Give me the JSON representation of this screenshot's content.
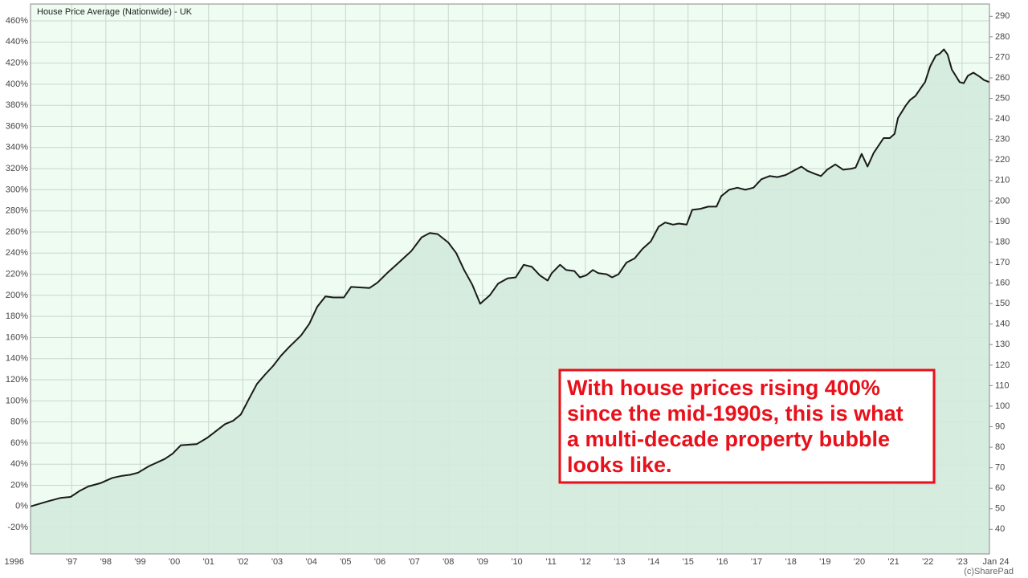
{
  "chart_data": {
    "type": "line",
    "title": "House Price Average (Nationwide) - UK",
    "credit": "(c)SharePad",
    "annotation": [
      "With house prices rising 400%",
      "since the mid-1990s, this is what",
      "a multi-decade property bubble",
      "looks like."
    ],
    "xlim": [
      1995.8,
      2023.8
    ],
    "xticks": [
      {
        "value": 1995.8,
        "label": "1996"
      },
      {
        "value": 1997,
        "label": "'97"
      },
      {
        "value": 1998,
        "label": "'98"
      },
      {
        "value": 1999,
        "label": "'99"
      },
      {
        "value": 2000,
        "label": "'00"
      },
      {
        "value": 2001,
        "label": "'01"
      },
      {
        "value": 2002,
        "label": "'02"
      },
      {
        "value": 2003,
        "label": "'03"
      },
      {
        "value": 2004,
        "label": "'04"
      },
      {
        "value": 2005,
        "label": "'05"
      },
      {
        "value": 2006,
        "label": "'06"
      },
      {
        "value": 2007,
        "label": "'07"
      },
      {
        "value": 2008,
        "label": "'08"
      },
      {
        "value": 2009,
        "label": "'09"
      },
      {
        "value": 2010,
        "label": "'10"
      },
      {
        "value": 2011,
        "label": "'11"
      },
      {
        "value": 2012,
        "label": "'12"
      },
      {
        "value": 2013,
        "label": "'13"
      },
      {
        "value": 2014,
        "label": "'14"
      },
      {
        "value": 2015,
        "label": "'15"
      },
      {
        "value": 2016,
        "label": "'16"
      },
      {
        "value": 2017,
        "label": "'17"
      },
      {
        "value": 2018,
        "label": "'18"
      },
      {
        "value": 2019,
        "label": "'19"
      },
      {
        "value": 2020,
        "label": "'20"
      },
      {
        "value": 2021,
        "label": "'21"
      },
      {
        "value": 2022,
        "label": "'22"
      },
      {
        "value": 2023,
        "label": "'23"
      },
      {
        "value": 2023.8,
        "label": "Jan 24"
      }
    ],
    "ylim": [
      -45,
      476
    ],
    "yticks": [
      {
        "value": -20,
        "label": "-20%"
      },
      {
        "value": 0,
        "label": "0%"
      },
      {
        "value": 20,
        "label": "20%"
      },
      {
        "value": 40,
        "label": "40%"
      },
      {
        "value": 60,
        "label": "60%"
      },
      {
        "value": 80,
        "label": "80%"
      },
      {
        "value": 100,
        "label": "100%"
      },
      {
        "value": 120,
        "label": "120%"
      },
      {
        "value": 140,
        "label": "140%"
      },
      {
        "value": 160,
        "label": "160%"
      },
      {
        "value": 180,
        "label": "180%"
      },
      {
        "value": 200,
        "label": "200%"
      },
      {
        "value": 220,
        "label": "220%"
      },
      {
        "value": 240,
        "label": "240%"
      },
      {
        "value": 260,
        "label": "260%"
      },
      {
        "value": 280,
        "label": "280%"
      },
      {
        "value": 300,
        "label": "300%"
      },
      {
        "value": 320,
        "label": "320%"
      },
      {
        "value": 340,
        "label": "340%"
      },
      {
        "value": 360,
        "label": "360%"
      },
      {
        "value": 380,
        "label": "380%"
      },
      {
        "value": 400,
        "label": "400%"
      },
      {
        "value": 420,
        "label": "420%"
      },
      {
        "value": 440,
        "label": "440%"
      },
      {
        "value": 460,
        "label": "460%"
      }
    ],
    "y2lim": [
      28,
      296
    ],
    "y2ticks": [
      40,
      50,
      60,
      70,
      80,
      90,
      100,
      110,
      120,
      130,
      140,
      150,
      160,
      170,
      180,
      190,
      200,
      210,
      220,
      230,
      240,
      250,
      260,
      270,
      280,
      290
    ],
    "grid": true,
    "series": [
      {
        "color": "#1a1a1a",
        "fill": "#d3ebdd",
        "x": [
          1995.8,
          1996.32,
          1996.67,
          1996.97,
          1997.25,
          1997.49,
          1997.84,
          1998.19,
          1998.47,
          1998.71,
          1998.94,
          1999.25,
          1999.72,
          1999.95,
          2000.19,
          2000.65,
          2000.96,
          2001.24,
          2001.48,
          2001.71,
          2001.94,
          2002.18,
          2002.41,
          2002.65,
          2002.88,
          2003.12,
          2003.35,
          2003.7,
          2003.94,
          2004.17,
          2004.41,
          2004.64,
          2004.95,
          2005.16,
          2005.7,
          2005.93,
          2006.21,
          2006.52,
          2006.92,
          2007.22,
          2007.46,
          2007.69,
          2008.0,
          2008.23,
          2008.46,
          2008.7,
          2008.93,
          2009.21,
          2009.45,
          2009.73,
          2009.97,
          2010.2,
          2010.44,
          2010.67,
          2010.9,
          2011.02,
          2011.26,
          2011.44,
          2011.68,
          2011.84,
          2012.03,
          2012.22,
          2012.38,
          2012.62,
          2012.78,
          2012.97,
          2013.2,
          2013.44,
          2013.67,
          2013.91,
          2014.14,
          2014.33,
          2014.56,
          2014.73,
          2014.96,
          2015.12,
          2015.36,
          2015.59,
          2015.83,
          2015.97,
          2016.2,
          2016.44,
          2016.67,
          2016.91,
          2017.14,
          2017.38,
          2017.61,
          2017.85,
          2018.08,
          2018.31,
          2018.48,
          2018.71,
          2018.88,
          2019.06,
          2019.3,
          2019.53,
          2019.77,
          2019.89,
          2020.07,
          2020.24,
          2020.42,
          2020.71,
          2020.89,
          2021.03,
          2021.13,
          2021.36,
          2021.48,
          2021.64,
          2021.83,
          2021.92,
          2022.07,
          2022.23,
          2022.35,
          2022.47,
          2022.58,
          2022.7,
          2022.93,
          2023.05,
          2023.17,
          2023.33,
          2023.52,
          2023.64,
          2023.8
        ],
        "values": [
          0,
          5,
          8,
          9,
          15,
          19,
          22,
          27,
          29,
          30,
          32,
          38,
          45,
          50,
          58,
          59,
          65,
          72,
          78,
          81,
          87,
          102,
          116,
          125,
          133,
          143,
          151,
          162,
          173,
          189,
          199,
          198,
          198,
          208,
          207,
          212,
          221,
          230,
          242,
          255,
          259,
          258,
          250,
          240,
          224,
          210,
          192,
          200,
          211,
          216,
          217,
          229,
          227,
          219,
          214,
          221,
          229,
          224,
          223,
          217,
          219,
          224,
          221,
          220,
          217,
          220,
          231,
          235,
          244,
          251,
          265,
          269,
          267,
          268,
          267,
          281,
          282,
          284,
          284,
          294,
          300,
          302,
          300,
          302,
          310,
          313,
          312,
          314,
          318,
          322,
          318,
          315,
          313,
          319,
          324,
          319,
          320,
          321,
          334,
          322,
          335,
          349,
          349,
          353,
          368,
          380,
          385,
          389,
          398,
          402,
          417,
          427,
          429,
          433,
          428,
          414,
          402,
          401,
          408,
          411,
          407,
          404,
          402
        ]
      }
    ]
  }
}
